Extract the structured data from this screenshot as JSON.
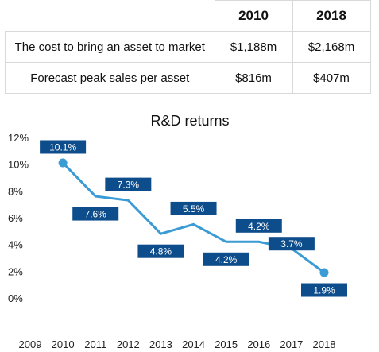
{
  "table": {
    "headers": [
      "",
      "2010",
      "2018"
    ],
    "rows": [
      {
        "label": "The cost to bring an asset to market",
        "v2010": "$1,188m",
        "v2018": "$2,168m"
      },
      {
        "label": "Forecast peak sales per asset",
        "v2010": "$816m",
        "v2018": "$407m"
      }
    ]
  },
  "chart_data": {
    "type": "line",
    "title": "R&D returns",
    "xlabel": "",
    "ylabel": "",
    "x_ticks": [
      2009,
      2010,
      2011,
      2012,
      2013,
      2014,
      2015,
      2016,
      2017,
      2018
    ],
    "y_ticks": [
      "12%",
      "10%",
      "8%",
      "6%",
      "4%",
      "2%",
      "0%"
    ],
    "ylim": [
      0,
      12
    ],
    "xlim": [
      2009,
      2018
    ],
    "grid": false,
    "series": [
      {
        "x": [
          2010,
          2011,
          2012,
          2013,
          2014,
          2015,
          2016,
          2017,
          2018
        ],
        "values": [
          10.1,
          7.6,
          7.3,
          4.8,
          5.5,
          4.2,
          4.2,
          3.7,
          1.9
        ],
        "labels": [
          "10.1%",
          "7.6%",
          "7.3%",
          "4.8%",
          "5.5%",
          "4.2%",
          "4.2%",
          "3.7%",
          "1.9%"
        ]
      }
    ],
    "line_color": "#3b9bd4",
    "label_bg_color": "#0e4d8c"
  }
}
